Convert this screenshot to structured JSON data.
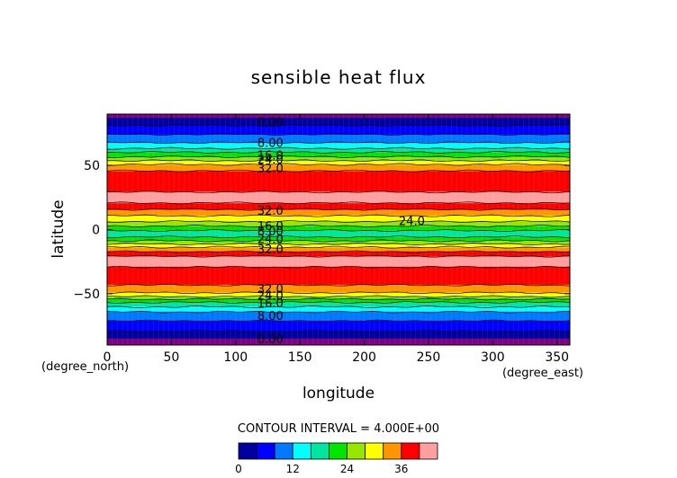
{
  "chart_data": {
    "type": "heatmap",
    "title": "sensible heat flux",
    "xlabel": "longitude",
    "ylabel": "latitude",
    "x_unit": "(degree_east)",
    "y_unit": "(degree_north)",
    "xlim": [
      0,
      360
    ],
    "ylim": [
      -90,
      90
    ],
    "x_ticks": [
      0,
      50,
      100,
      150,
      200,
      250,
      300,
      350
    ],
    "y_ticks": [
      50,
      0,
      -50
    ],
    "contour_interval_text": "CONTOUR INTERVAL = 4.000E+00",
    "colorbar": {
      "min": 0,
      "max": 40,
      "step": 4,
      "tick_values": [
        0,
        12,
        24,
        36
      ],
      "colors": [
        "#0000a0",
        "#0000ff",
        "#0078ff",
        "#00ffff",
        "#00e6a0",
        "#00e600",
        "#96e600",
        "#ffff00",
        "#ff9600",
        "#ff0000",
        "#ffa0a0"
      ]
    },
    "latitude_profile": [
      {
        "lat": 90,
        "value": 0
      },
      {
        "lat": 87,
        "value": 0
      },
      {
        "lat": 84,
        "value": 2
      },
      {
        "lat": 78,
        "value": 6
      },
      {
        "lat": 72,
        "value": 9
      },
      {
        "lat": 66,
        "value": 13
      },
      {
        "lat": 60,
        "value": 20
      },
      {
        "lat": 55,
        "value": 26
      },
      {
        "lat": 50,
        "value": 33
      },
      {
        "lat": 44,
        "value": 37
      },
      {
        "lat": 38,
        "value": 37
      },
      {
        "lat": 33,
        "value": 37
      },
      {
        "lat": 28,
        "value": 41
      },
      {
        "lat": 22,
        "value": 41
      },
      {
        "lat": 17,
        "value": 37
      },
      {
        "lat": 13,
        "value": 34
      },
      {
        "lat": 9,
        "value": 30
      },
      {
        "lat": 5,
        "value": 27
      },
      {
        "lat": 1,
        "value": 22
      },
      {
        "lat": -3,
        "value": 17
      },
      {
        "lat": -6,
        "value": 20
      },
      {
        "lat": -10,
        "value": 26
      },
      {
        "lat": -14,
        "value": 32
      },
      {
        "lat": -18,
        "value": 37
      },
      {
        "lat": -22,
        "value": 41
      },
      {
        "lat": -28,
        "value": 41
      },
      {
        "lat": -32,
        "value": 37
      },
      {
        "lat": -40,
        "value": 37
      },
      {
        "lat": -46,
        "value": 35
      },
      {
        "lat": -51,
        "value": 30
      },
      {
        "lat": -55,
        "value": 22
      },
      {
        "lat": -60,
        "value": 16
      },
      {
        "lat": -65,
        "value": 11
      },
      {
        "lat": -71,
        "value": 8
      },
      {
        "lat": -77,
        "value": 5
      },
      {
        "lat": -83,
        "value": 2
      },
      {
        "lat": -87,
        "value": 0
      },
      {
        "lat": -90,
        "value": 0
      }
    ],
    "contour_labels": [
      {
        "text": "0.00",
        "lon": 127,
        "lat": 84
      },
      {
        "text": "8.00",
        "lon": 127,
        "lat": 68
      },
      {
        "text": "16.0",
        "lon": 127,
        "lat": 58
      },
      {
        "text": "24.0",
        "lon": 127,
        "lat": 55
      },
      {
        "text": "32.0",
        "lon": 127,
        "lat": 48
      },
      {
        "text": "32.0",
        "lon": 127,
        "lat": 15
      },
      {
        "text": "24.0",
        "lon": 237,
        "lat": 7
      },
      {
        "text": "16.0",
        "lon": 127,
        "lat": 3
      },
      {
        "text": "8.00",
        "lon": 127,
        "lat": -1
      },
      {
        "text": "24.0",
        "lon": 127,
        "lat": -7
      },
      {
        "text": "32.0",
        "lon": 127,
        "lat": -15
      },
      {
        "text": "32.0",
        "lon": 127,
        "lat": -46
      },
      {
        "text": "24.0",
        "lon": 127,
        "lat": -51
      },
      {
        "text": "16.0",
        "lon": 127,
        "lat": -57
      },
      {
        "text": "8.00",
        "lon": 127,
        "lat": -67
      },
      {
        "text": "0.00",
        "lon": 127,
        "lat": -85
      }
    ]
  }
}
